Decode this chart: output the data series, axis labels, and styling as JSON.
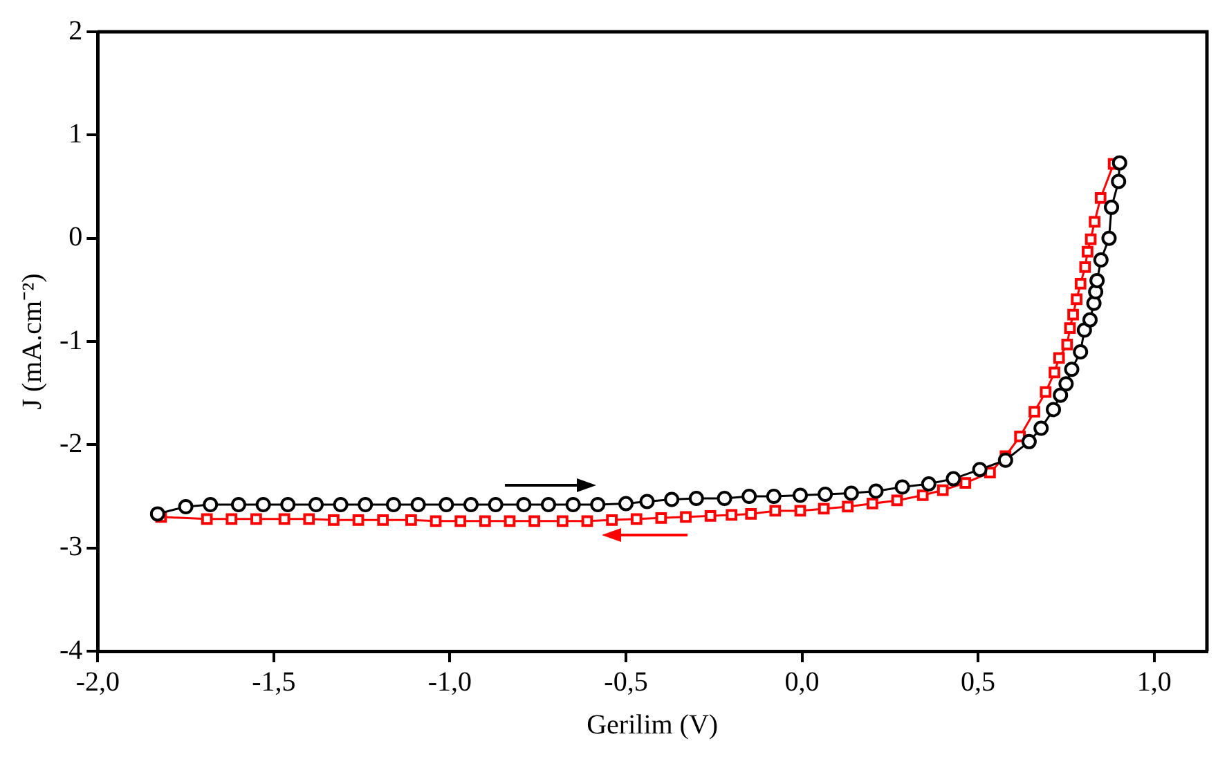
{
  "chart_data": {
    "type": "line",
    "xlabel": "Gerilim (V)",
    "ylabel": "J (mA.cm⁻²)",
    "xlim": [
      -2,
      1.15
    ],
    "ylim": [
      -4,
      2
    ],
    "xticks": [
      {
        "value": -2,
        "label": "-2,0"
      },
      {
        "value": -1.5,
        "label": "-1,5"
      },
      {
        "value": -1,
        "label": "-1,0"
      },
      {
        "value": -0.5,
        "label": "-0,5"
      },
      {
        "value": 0,
        "label": "0,0"
      },
      {
        "value": 0.5,
        "label": "0,5"
      },
      {
        "value": 1,
        "label": "1,0"
      }
    ],
    "yticks": [
      -4,
      -3,
      -2,
      -1,
      0,
      1,
      2
    ],
    "grid": false,
    "legend": false,
    "line_style": "solid",
    "series": [
      {
        "color": "#000000",
        "marker": "circle",
        "x": [
          -1.83,
          -1.75,
          -1.68,
          -1.6,
          -1.53,
          -1.46,
          -1.38,
          -1.31,
          -1.24,
          -1.16,
          -1.09,
          -1.01,
          -0.94,
          -0.87,
          -0.79,
          -0.72,
          -0.65,
          -0.58,
          -0.5,
          -0.44,
          -0.37,
          -0.3,
          -0.22,
          -0.15,
          -0.08,
          -0.005,
          0.066,
          0.14,
          0.21,
          0.285,
          0.36,
          0.43,
          0.505,
          0.578,
          0.645,
          0.679,
          0.714,
          0.734,
          0.75,
          0.766,
          0.791,
          0.802,
          0.818,
          0.829,
          0.834,
          0.838,
          0.849,
          0.872,
          0.879,
          0.899,
          0.902
        ],
        "values": [
          -2.67,
          -2.6,
          -2.58,
          -2.58,
          -2.58,
          -2.58,
          -2.58,
          -2.58,
          -2.58,
          -2.58,
          -2.58,
          -2.58,
          -2.58,
          -2.58,
          -2.58,
          -2.58,
          -2.58,
          -2.58,
          -2.57,
          -2.55,
          -2.53,
          -2.52,
          -2.52,
          -2.5,
          -2.5,
          -2.49,
          -2.48,
          -2.47,
          -2.45,
          -2.41,
          -2.38,
          -2.33,
          -2.24,
          -2.15,
          -1.97,
          -1.84,
          -1.66,
          -1.52,
          -1.41,
          -1.27,
          -1.1,
          -0.89,
          -0.79,
          -0.63,
          -0.52,
          -0.41,
          -0.21,
          0,
          0.3,
          0.55,
          0.73
        ]
      },
      {
        "color": "#ff0000",
        "marker": "square",
        "x": [
          -1.82,
          -1.69,
          -1.62,
          -1.55,
          -1.47,
          -1.4,
          -1.33,
          -1.26,
          -1.19,
          -1.11,
          -1.04,
          -0.97,
          -0.9,
          -0.83,
          -0.76,
          -0.68,
          -0.61,
          -0.54,
          -0.47,
          -0.4,
          -0.33,
          -0.26,
          -0.2,
          -0.145,
          -0.076,
          -0.005,
          0.062,
          0.13,
          0.2,
          0.27,
          0.343,
          0.4,
          0.464,
          0.534,
          0.578,
          0.619,
          0.66,
          0.692,
          0.717,
          0.73,
          0.753,
          0.761,
          0.77,
          0.78,
          0.791,
          0.804,
          0.811,
          0.82,
          0.831,
          0.848,
          0.885
        ],
        "values": [
          -2.7,
          -2.72,
          -2.72,
          -2.72,
          -2.72,
          -2.72,
          -2.73,
          -2.73,
          -2.73,
          -2.73,
          -2.74,
          -2.74,
          -2.74,
          -2.74,
          -2.74,
          -2.74,
          -2.74,
          -2.73,
          -2.72,
          -2.71,
          -2.7,
          -2.69,
          -2.68,
          -2.67,
          -2.64,
          -2.64,
          -2.62,
          -2.6,
          -2.57,
          -2.54,
          -2.49,
          -2.44,
          -2.37,
          -2.27,
          -2.11,
          -1.92,
          -1.68,
          -1.49,
          -1.3,
          -1.16,
          -1.03,
          -0.87,
          -0.74,
          -0.59,
          -0.44,
          -0.28,
          -0.13,
          -0.01,
          0.16,
          0.39,
          0.72
        ]
      }
    ]
  }
}
